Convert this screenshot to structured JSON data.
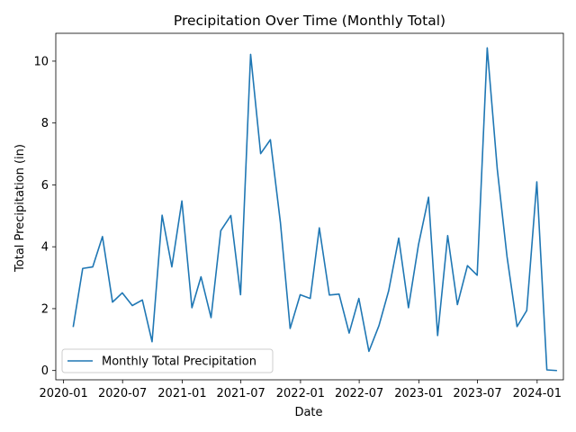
{
  "chart_data": {
    "type": "line",
    "title": "Precipitation Over Time (Monthly Total)",
    "xlabel": "Date",
    "ylabel": "Total Precipitation (in)",
    "ylim": [
      -0.3,
      10.9
    ],
    "xlim": [
      "2019-12-08",
      "2024-03-22"
    ],
    "grid": false,
    "legend_position": "lower-left",
    "line_color": "#1f77b4",
    "x_ticks": [
      {
        "date": "2020-01-01",
        "label": "2020-01"
      },
      {
        "date": "2020-07-01",
        "label": "2020-07"
      },
      {
        "date": "2021-01-01",
        "label": "2021-01"
      },
      {
        "date": "2021-07-01",
        "label": "2021-07"
      },
      {
        "date": "2022-01-01",
        "label": "2022-01"
      },
      {
        "date": "2022-07-01",
        "label": "2022-07"
      },
      {
        "date": "2023-01-01",
        "label": "2023-01"
      },
      {
        "date": "2023-07-01",
        "label": "2023-07"
      },
      {
        "date": "2024-01-01",
        "label": "2024-01"
      }
    ],
    "y_ticks": [
      {
        "value": 0,
        "label": "0"
      },
      {
        "value": 2,
        "label": "2"
      },
      {
        "value": 4,
        "label": "4"
      },
      {
        "value": 6,
        "label": "6"
      },
      {
        "value": 8,
        "label": "8"
      },
      {
        "value": 10,
        "label": "10"
      }
    ],
    "series": [
      {
        "name": "Monthly Total Precipitation",
        "x": [
          "2020-01-31",
          "2020-02-29",
          "2020-03-31",
          "2020-04-30",
          "2020-05-31",
          "2020-06-30",
          "2020-07-31",
          "2020-08-31",
          "2020-09-30",
          "2020-10-31",
          "2020-11-30",
          "2020-12-31",
          "2021-01-31",
          "2021-02-28",
          "2021-03-31",
          "2021-04-30",
          "2021-05-31",
          "2021-06-30",
          "2021-07-31",
          "2021-08-31",
          "2021-09-30",
          "2021-10-31",
          "2021-11-30",
          "2021-12-31",
          "2022-01-31",
          "2022-02-28",
          "2022-03-31",
          "2022-04-30",
          "2022-05-31",
          "2022-06-30",
          "2022-07-31",
          "2022-08-31",
          "2022-09-30",
          "2022-10-31",
          "2022-11-30",
          "2022-12-31",
          "2023-01-31",
          "2023-02-28",
          "2023-03-31",
          "2023-04-30",
          "2023-05-31",
          "2023-06-30",
          "2023-07-31",
          "2023-08-31",
          "2023-09-30",
          "2023-10-31",
          "2023-11-30",
          "2023-12-31",
          "2024-01-31",
          "2024-02-29"
        ],
        "values": [
          1.43,
          3.3,
          3.35,
          4.33,
          2.21,
          2.51,
          2.1,
          2.28,
          0.93,
          5.02,
          3.35,
          5.48,
          2.03,
          3.03,
          1.71,
          4.52,
          5.01,
          2.45,
          10.22,
          7.01,
          7.46,
          4.78,
          1.36,
          2.45,
          2.33,
          4.61,
          2.44,
          2.47,
          1.21,
          2.33,
          0.62,
          1.45,
          2.58,
          4.28,
          2.03,
          4.07,
          5.6,
          1.13,
          4.36,
          2.13,
          3.39,
          3.08,
          10.43,
          6.51,
          3.69,
          1.42,
          1.94,
          6.1,
          0.02,
          0.0
        ]
      }
    ]
  }
}
